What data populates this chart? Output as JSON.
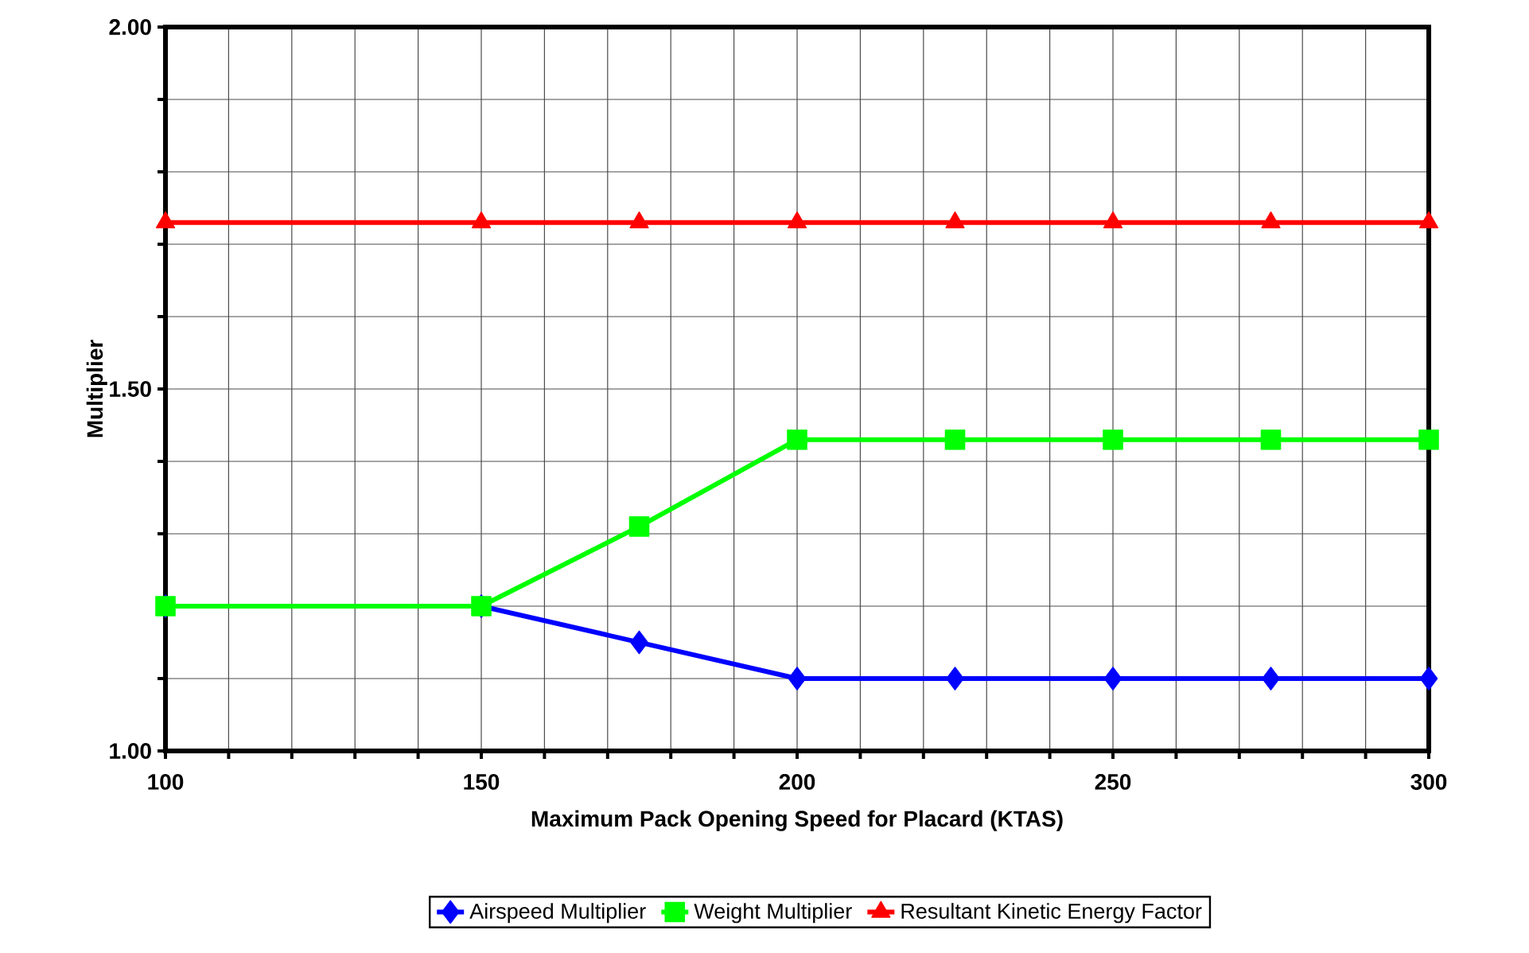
{
  "chart_data": {
    "type": "line",
    "xlabel": "Maximum Pack Opening Speed for Placard (KTAS)",
    "ylabel": "Multiplier",
    "x": [
      100,
      150,
      175,
      200,
      225,
      250,
      275,
      300
    ],
    "xlim": [
      100,
      300
    ],
    "xticks": [
      100,
      {
        "value": 110,
        "label": null
      },
      {
        "value": 120,
        "label": null
      },
      {
        "value": 130,
        "label": null
      },
      {
        "value": 140,
        "label": null
      },
      150,
      {
        "value": 160,
        "label": null
      },
      {
        "value": 170,
        "label": null
      },
      {
        "value": 180,
        "label": null
      },
      {
        "value": 190,
        "label": null
      },
      200,
      {
        "value": 210,
        "label": null
      },
      {
        "value": 220,
        "label": null
      },
      {
        "value": 230,
        "label": null
      },
      {
        "value": 240,
        "label": null
      },
      250,
      {
        "value": 260,
        "label": null
      },
      {
        "value": 270,
        "label": null
      },
      {
        "value": 280,
        "label": null
      },
      {
        "value": 290,
        "label": null
      },
      300
    ],
    "ylim": [
      1.0,
      2.0
    ],
    "yticks": [
      {
        "value": 1.0,
        "label": "1.00"
      },
      {
        "value": 1.1,
        "label": null
      },
      {
        "value": 1.2,
        "label": null
      },
      {
        "value": 1.3,
        "label": null
      },
      {
        "value": 1.4,
        "label": null
      },
      {
        "value": 1.5,
        "label": "1.50"
      },
      {
        "value": 1.6,
        "label": null
      },
      {
        "value": 1.7,
        "label": null
      },
      {
        "value": 1.8,
        "label": null
      },
      {
        "value": 1.9,
        "label": null
      },
      {
        "value": 2.0,
        "label": "2.00"
      }
    ],
    "grid": true,
    "legend": "bottom",
    "line_style": "solid",
    "series": [
      {
        "name": "Airspeed Multiplier",
        "color": "#0000ff",
        "marker": "diamond",
        "values": [
          1.2,
          1.2,
          1.15,
          1.1,
          1.1,
          1.1,
          1.1,
          1.1
        ]
      },
      {
        "name": "Weight Multiplier",
        "color": "#00ff00",
        "marker": "square",
        "values": [
          1.2,
          1.2,
          1.31,
          1.43,
          1.43,
          1.43,
          1.43,
          1.43
        ]
      },
      {
        "name": "Resultant Kinetic Energy Factor",
        "color": "#ff0000",
        "marker": "triangle",
        "values": [
          1.73,
          1.73,
          1.73,
          1.73,
          1.73,
          1.73,
          1.73,
          1.73
        ]
      }
    ]
  }
}
